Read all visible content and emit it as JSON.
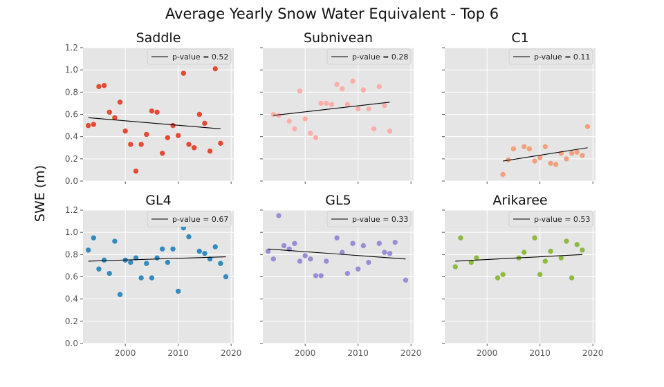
{
  "chart_data": {
    "type": "scatter",
    "title": "Average Yearly Snow Water Equivalent - Top 6",
    "ylabel": "SWE (m)",
    "xlim": [
      1992,
      2020.5
    ],
    "ylim": [
      0,
      1.2
    ],
    "x_ticks": [
      2000,
      2010,
      2020
    ],
    "y_ticks": [
      0.0,
      0.2,
      0.4,
      0.6,
      0.8,
      1.0,
      1.2
    ],
    "grid": true,
    "legend_position": "top-right",
    "panels": [
      {
        "name": "Saddle",
        "color": "#E24A33",
        "legend": "p-value = 0.52",
        "x": [
          1993,
          1994,
          1995,
          1996,
          1997,
          1998,
          1999,
          2000,
          2001,
          2002,
          2003,
          2004,
          2005,
          2006,
          2007,
          2008,
          2009,
          2010,
          2011,
          2012,
          2013,
          2014,
          2015,
          2016,
          2017,
          2018
        ],
        "y": [
          0.5,
          0.51,
          0.85,
          0.86,
          0.62,
          0.57,
          0.71,
          0.45,
          0.33,
          0.09,
          0.33,
          0.42,
          0.63,
          0.62,
          0.25,
          0.39,
          0.5,
          0.41,
          0.97,
          0.33,
          0.3,
          0.6,
          0.52,
          0.27,
          1.01,
          0.34
        ],
        "trend": {
          "x": [
            1993,
            2018
          ],
          "y": [
            0.57,
            0.47
          ]
        }
      },
      {
        "name": "Subnivean",
        "color": "#FBAFA9",
        "legend": "p-value = 0.28",
        "x": [
          1994,
          1995,
          1997,
          1998,
          1999,
          2000,
          2001,
          2002,
          2003,
          2004,
          2005,
          2006,
          2007,
          2008,
          2009,
          2010,
          2011,
          2012,
          2013,
          2014,
          2015,
          2016
        ],
        "y": [
          0.6,
          0.59,
          0.54,
          0.47,
          0.81,
          0.56,
          0.43,
          0.39,
          0.7,
          0.7,
          0.69,
          0.87,
          0.83,
          0.69,
          0.9,
          0.65,
          0.82,
          0.65,
          0.47,
          0.85,
          0.68,
          0.45
        ],
        "trend": {
          "x": [
            1994,
            2016
          ],
          "y": [
            0.59,
            0.71
          ]
        }
      },
      {
        "name": "C1",
        "color": "#F3A07E",
        "legend": "p-value = 0.11",
        "x": [
          2003,
          2004,
          2005,
          2007,
          2008,
          2009,
          2010,
          2011,
          2012,
          2013,
          2014,
          2015,
          2016,
          2017,
          2018,
          2019
        ],
        "y": [
          0.06,
          0.19,
          0.29,
          0.31,
          0.29,
          0.18,
          0.21,
          0.31,
          0.16,
          0.15,
          0.25,
          0.2,
          0.25,
          0.26,
          0.23,
          0.49
        ],
        "trend": {
          "x": [
            2003,
            2019
          ],
          "y": [
            0.18,
            0.3
          ]
        }
      },
      {
        "name": "GL4",
        "color": "#348ABD",
        "legend": "p-value = 0.67",
        "x": [
          1993,
          1994,
          1995,
          1996,
          1997,
          1998,
          1999,
          2000,
          2001,
          2002,
          2003,
          2004,
          2005,
          2006,
          2007,
          2008,
          2009,
          2010,
          2011,
          2012,
          2014,
          2015,
          2016,
          2017,
          2018,
          2019
        ],
        "y": [
          0.84,
          0.95,
          0.67,
          0.75,
          0.63,
          0.92,
          0.44,
          0.75,
          0.73,
          0.77,
          0.59,
          0.72,
          0.59,
          0.77,
          0.85,
          0.73,
          0.85,
          0.47,
          1.04,
          0.96,
          0.83,
          0.81,
          0.76,
          0.87,
          0.72,
          0.6
        ],
        "trend": {
          "x": [
            1993,
            2019
          ],
          "y": [
            0.74,
            0.78
          ]
        }
      },
      {
        "name": "GL5",
        "color": "#988ED5",
        "legend": "p-value = 0.33",
        "x": [
          1993,
          1994,
          1995,
          1996,
          1997,
          1998,
          1999,
          2000,
          2001,
          2002,
          2003,
          2004,
          2006,
          2007,
          2008,
          2009,
          2010,
          2011,
          2012,
          2014,
          2015,
          2016,
          2017,
          2019
        ],
        "y": [
          0.83,
          0.76,
          1.15,
          0.88,
          0.85,
          0.9,
          0.74,
          0.79,
          0.76,
          0.61,
          0.61,
          0.74,
          0.95,
          0.82,
          0.63,
          0.9,
          0.67,
          0.88,
          0.73,
          0.9,
          0.82,
          0.81,
          0.91,
          0.57
        ],
        "trend": {
          "x": [
            1993,
            2019
          ],
          "y": [
            0.85,
            0.76
          ]
        }
      },
      {
        "name": "Arikaree",
        "color": "#8EBA42",
        "legend": "p-value = 0.53",
        "x": [
          1994,
          1995,
          1997,
          1998,
          2002,
          2003,
          2006,
          2007,
          2009,
          2010,
          2011,
          2012,
          2014,
          2015,
          2016,
          2017,
          2018
        ],
        "y": [
          0.69,
          0.95,
          0.73,
          0.77,
          0.59,
          0.62,
          0.77,
          0.82,
          0.95,
          0.62,
          0.74,
          0.83,
          0.77,
          0.92,
          0.59,
          0.89,
          0.84
        ],
        "trend": {
          "x": [
            1994,
            2018
          ],
          "y": [
            0.74,
            0.8
          ]
        }
      }
    ]
  }
}
